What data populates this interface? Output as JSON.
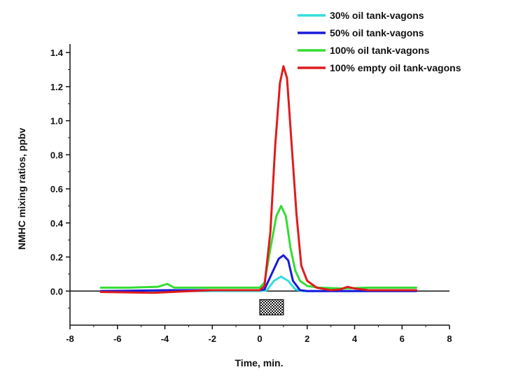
{
  "chart_data": {
    "type": "line",
    "title": "",
    "xlabel": "Time, min.",
    "ylabel": "NMHC mixing ratios, ppbv",
    "xlim": [
      -8,
      8
    ],
    "ylim": [
      -0.2,
      1.45
    ],
    "x_ticks": [
      "-8",
      "-6",
      "-4",
      "-2",
      "0",
      "2",
      "4",
      "6",
      "8"
    ],
    "y_ticks": [
      "0.0",
      "0.2",
      "0.4",
      "0.6",
      "0.8",
      "1.0",
      "1.2",
      "1.4"
    ],
    "grid": false,
    "legend_position": "top-right",
    "baseline_y": 0,
    "event_bar": {
      "x_start": 0,
      "x_end": 1,
      "y_top": -0.05,
      "y_bottom": -0.14
    },
    "series": [
      {
        "name": "30% oil tank-vagons",
        "color": "#33dddd",
        "points": [
          [
            -6.7,
            0
          ],
          [
            0,
            0
          ],
          [
            0.3,
            0.005
          ],
          [
            0.6,
            0.06
          ],
          [
            0.9,
            0.085
          ],
          [
            1.2,
            0.06
          ],
          [
            1.5,
            0.01
          ],
          [
            1.8,
            0
          ],
          [
            4.5,
            0
          ],
          [
            6.6,
            0
          ]
        ]
      },
      {
        "name": "50% oil tank-vagons",
        "color": "#1a1adb",
        "points": [
          [
            -6.7,
            0
          ],
          [
            -3.8,
            0.005
          ],
          [
            0,
            0.005
          ],
          [
            0.2,
            0.01
          ],
          [
            0.5,
            0.1
          ],
          [
            0.8,
            0.19
          ],
          [
            1.0,
            0.21
          ],
          [
            1.2,
            0.18
          ],
          [
            1.4,
            0.06
          ],
          [
            1.7,
            0.005
          ],
          [
            2.0,
            0
          ],
          [
            6.6,
            0
          ]
        ]
      },
      {
        "name": "100% oil tank-vagons",
        "color": "#33dd33",
        "points": [
          [
            -6.7,
            0.02
          ],
          [
            -5.5,
            0.02
          ],
          [
            -4.3,
            0.025
          ],
          [
            -3.9,
            0.042
          ],
          [
            -3.6,
            0.02
          ],
          [
            -2.5,
            0.02
          ],
          [
            0,
            0.02
          ],
          [
            0.2,
            0.05
          ],
          [
            0.45,
            0.25
          ],
          [
            0.7,
            0.44
          ],
          [
            0.9,
            0.5
          ],
          [
            1.1,
            0.44
          ],
          [
            1.3,
            0.25
          ],
          [
            1.5,
            0.12
          ],
          [
            1.7,
            0.06
          ],
          [
            2.0,
            0.03
          ],
          [
            2.5,
            0.02
          ],
          [
            3.5,
            0.015
          ],
          [
            4.5,
            0.02
          ],
          [
            5.5,
            0.02
          ],
          [
            6.6,
            0.02
          ]
        ]
      },
      {
        "name": "100% empty oil tank-vagons",
        "color": "#e01b1b",
        "points": [
          [
            -6.7,
            -0.005
          ],
          [
            -4.5,
            -0.01
          ],
          [
            -2.0,
            0.005
          ],
          [
            0,
            0.005
          ],
          [
            0.2,
            0.03
          ],
          [
            0.45,
            0.35
          ],
          [
            0.65,
            0.85
          ],
          [
            0.85,
            1.22
          ],
          [
            1.0,
            1.32
          ],
          [
            1.15,
            1.25
          ],
          [
            1.35,
            0.85
          ],
          [
            1.55,
            0.45
          ],
          [
            1.75,
            0.15
          ],
          [
            2.0,
            0.06
          ],
          [
            2.4,
            0.02
          ],
          [
            3.0,
            0.005
          ],
          [
            3.4,
            0.01
          ],
          [
            3.7,
            0.025
          ],
          [
            4.0,
            0.015
          ],
          [
            4.6,
            0.005
          ],
          [
            5.5,
            0.005
          ],
          [
            6.6,
            0.005
          ]
        ]
      }
    ]
  }
}
